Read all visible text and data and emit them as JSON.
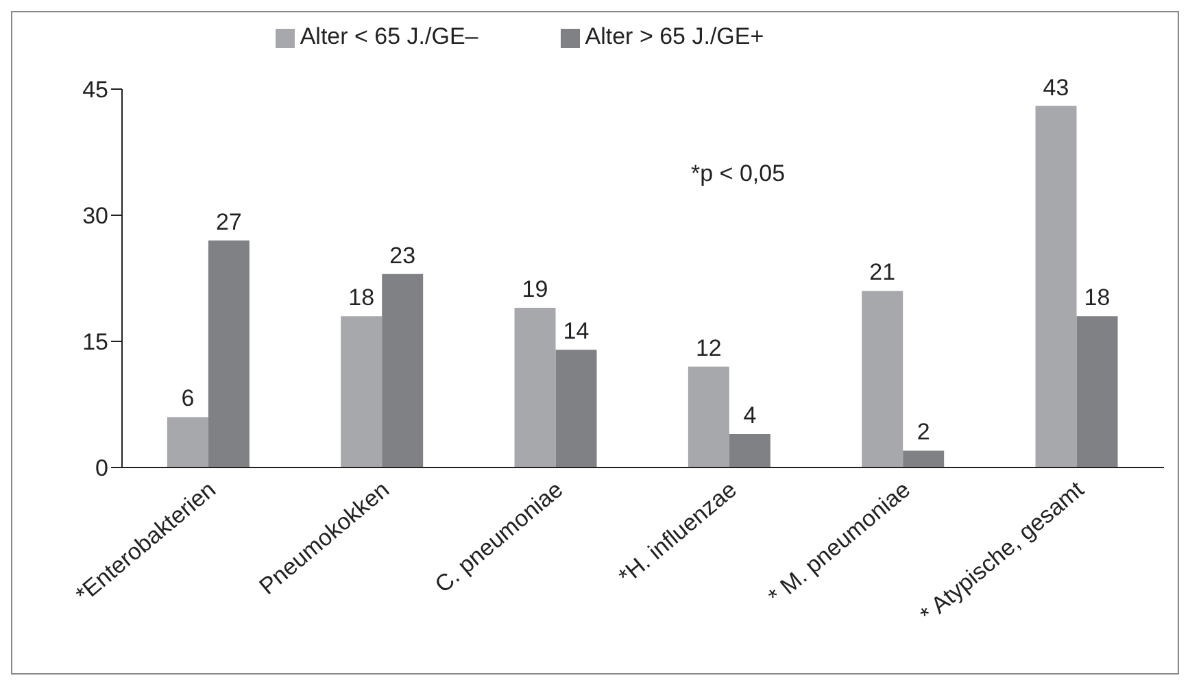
{
  "chart_data": {
    "type": "bar",
    "categories": [
      "*Enterobakterien",
      "Pneumokokken",
      "C. pneumoniae",
      "*H. influenzae",
      "* M. pneumoniae",
      "* Atypische, gesamt"
    ],
    "series": [
      {
        "name": "Alter < 65 J./GE–",
        "color": "#a7a8ab",
        "values": [
          6,
          18,
          19,
          12,
          21,
          43
        ]
      },
      {
        "name": "Alter > 65 J./GE+",
        "color": "#808184",
        "values": [
          27,
          23,
          14,
          4,
          2,
          18
        ]
      }
    ],
    "ylim": [
      0,
      45
    ],
    "yticks": [
      0,
      15,
      30,
      45
    ],
    "grid": false,
    "legend": "top",
    "data_labels": true,
    "annotations": [
      "*p < 0,05"
    ]
  }
}
